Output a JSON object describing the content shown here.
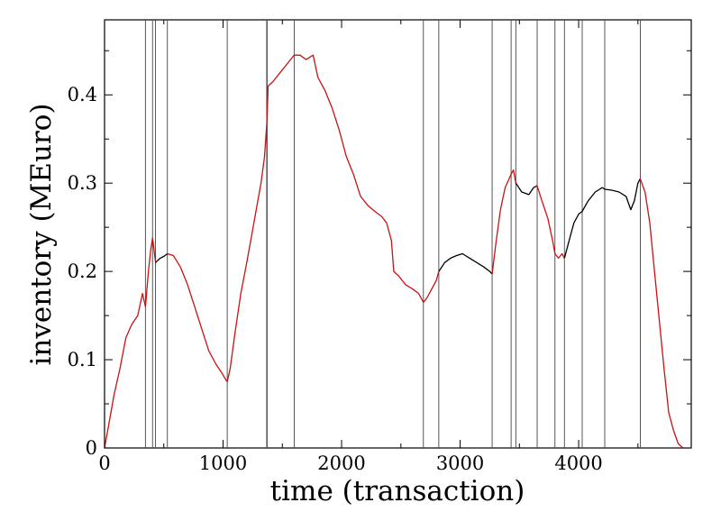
{
  "chart_data": {
    "type": "line",
    "xlabel": "time (transaction)",
    "ylabel": "inventory (MEuro)",
    "xlim": [
      0,
      4950
    ],
    "ylim": [
      0,
      0.485
    ],
    "x_ticks": [
      0,
      1000,
      2000,
      3000,
      4000
    ],
    "x_tick_labels": [
      "0",
      "1000",
      "2000",
      "3000",
      "4000"
    ],
    "y_ticks": [
      0,
      0.1,
      0.2,
      0.3,
      0.4
    ],
    "y_tick_labels": [
      "0",
      "0.1",
      "0.2",
      "0.3",
      "0.4"
    ],
    "grid": false,
    "vertical_lines": [
      345,
      405,
      430,
      530,
      1035,
      1370,
      1600,
      2690,
      2820,
      3270,
      3430,
      3470,
      3650,
      3800,
      3880,
      4030,
      4220,
      4520
    ],
    "series": [
      {
        "color": "#cc1111",
        "points": [
          [
            0,
            0.0
          ],
          [
            40,
            0.03
          ],
          [
            80,
            0.06
          ],
          [
            130,
            0.09
          ],
          [
            180,
            0.125
          ],
          [
            230,
            0.14
          ],
          [
            280,
            0.15
          ],
          [
            320,
            0.175
          ],
          [
            345,
            0.16
          ],
          [
            370,
            0.2
          ],
          [
            390,
            0.225
          ],
          [
            405,
            0.238
          ],
          [
            430,
            0.21
          ]
        ]
      },
      {
        "color": "#000000",
        "points": [
          [
            430,
            0.21
          ],
          [
            470,
            0.215
          ],
          [
            500,
            0.217
          ],
          [
            530,
            0.22
          ]
        ]
      },
      {
        "color": "#cc1111",
        "points": [
          [
            530,
            0.22
          ],
          [
            580,
            0.218
          ],
          [
            640,
            0.205
          ],
          [
            700,
            0.185
          ],
          [
            760,
            0.16
          ],
          [
            820,
            0.135
          ],
          [
            880,
            0.11
          ],
          [
            940,
            0.095
          ],
          [
            990,
            0.085
          ],
          [
            1020,
            0.078
          ],
          [
            1035,
            0.075
          ],
          [
            1060,
            0.09
          ],
          [
            1100,
            0.13
          ],
          [
            1150,
            0.175
          ],
          [
            1200,
            0.21
          ],
          [
            1240,
            0.24
          ],
          [
            1280,
            0.27
          ],
          [
            1320,
            0.3
          ],
          [
            1350,
            0.33
          ],
          [
            1370,
            0.37
          ],
          [
            1380,
            0.41
          ],
          [
            1420,
            0.415
          ],
          [
            1480,
            0.425
          ],
          [
            1540,
            0.435
          ],
          [
            1600,
            0.445
          ],
          [
            1650,
            0.445
          ],
          [
            1700,
            0.44
          ],
          [
            1760,
            0.445
          ],
          [
            1800,
            0.42
          ],
          [
            1860,
            0.405
          ],
          [
            1920,
            0.385
          ],
          [
            1980,
            0.36
          ],
          [
            2040,
            0.33
          ],
          [
            2100,
            0.31
          ],
          [
            2160,
            0.285
          ],
          [
            2220,
            0.275
          ],
          [
            2280,
            0.268
          ],
          [
            2340,
            0.262
          ],
          [
            2380,
            0.255
          ],
          [
            2420,
            0.235
          ],
          [
            2440,
            0.2
          ],
          [
            2480,
            0.195
          ],
          [
            2540,
            0.185
          ],
          [
            2600,
            0.18
          ],
          [
            2650,
            0.175
          ],
          [
            2690,
            0.165
          ],
          [
            2720,
            0.17
          ],
          [
            2760,
            0.18
          ],
          [
            2800,
            0.19
          ],
          [
            2820,
            0.2
          ]
        ]
      },
      {
        "color": "#000000",
        "points": [
          [
            2820,
            0.2
          ],
          [
            2870,
            0.21
          ],
          [
            2920,
            0.215
          ],
          [
            2970,
            0.218
          ],
          [
            3020,
            0.22
          ],
          [
            3080,
            0.215
          ],
          [
            3140,
            0.21
          ],
          [
            3200,
            0.205
          ],
          [
            3250,
            0.2
          ],
          [
            3270,
            0.197
          ]
        ]
      },
      {
        "color": "#cc1111",
        "points": [
          [
            3270,
            0.197
          ],
          [
            3300,
            0.23
          ],
          [
            3340,
            0.27
          ],
          [
            3380,
            0.295
          ],
          [
            3430,
            0.31
          ],
          [
            3450,
            0.315
          ],
          [
            3470,
            0.3
          ]
        ]
      },
      {
        "color": "#000000",
        "points": [
          [
            3470,
            0.3
          ],
          [
            3520,
            0.29
          ],
          [
            3580,
            0.287
          ],
          [
            3620,
            0.295
          ],
          [
            3650,
            0.297
          ]
        ]
      },
      {
        "color": "#cc1111",
        "points": [
          [
            3650,
            0.297
          ],
          [
            3690,
            0.28
          ],
          [
            3740,
            0.26
          ],
          [
            3780,
            0.235
          ],
          [
            3800,
            0.22
          ],
          [
            3830,
            0.215
          ],
          [
            3860,
            0.22
          ],
          [
            3880,
            0.215
          ]
        ]
      },
      {
        "color": "#000000",
        "points": [
          [
            3880,
            0.215
          ],
          [
            3920,
            0.235
          ],
          [
            3960,
            0.255
          ],
          [
            4000,
            0.265
          ],
          [
            4030,
            0.268
          ],
          [
            4080,
            0.28
          ],
          [
            4140,
            0.29
          ],
          [
            4200,
            0.295
          ],
          [
            4220,
            0.293
          ],
          [
            4280,
            0.292
          ],
          [
            4340,
            0.29
          ],
          [
            4400,
            0.285
          ],
          [
            4440,
            0.27
          ],
          [
            4470,
            0.28
          ],
          [
            4500,
            0.3
          ],
          [
            4520,
            0.305
          ]
        ]
      },
      {
        "color": "#cc1111",
        "points": [
          [
            4520,
            0.305
          ],
          [
            4560,
            0.29
          ],
          [
            4600,
            0.255
          ],
          [
            4640,
            0.2
          ],
          [
            4680,
            0.145
          ],
          [
            4720,
            0.09
          ],
          [
            4760,
            0.04
          ],
          [
            4800,
            0.02
          ],
          [
            4840,
            0.005
          ],
          [
            4880,
            0.0
          ]
        ]
      }
    ]
  }
}
